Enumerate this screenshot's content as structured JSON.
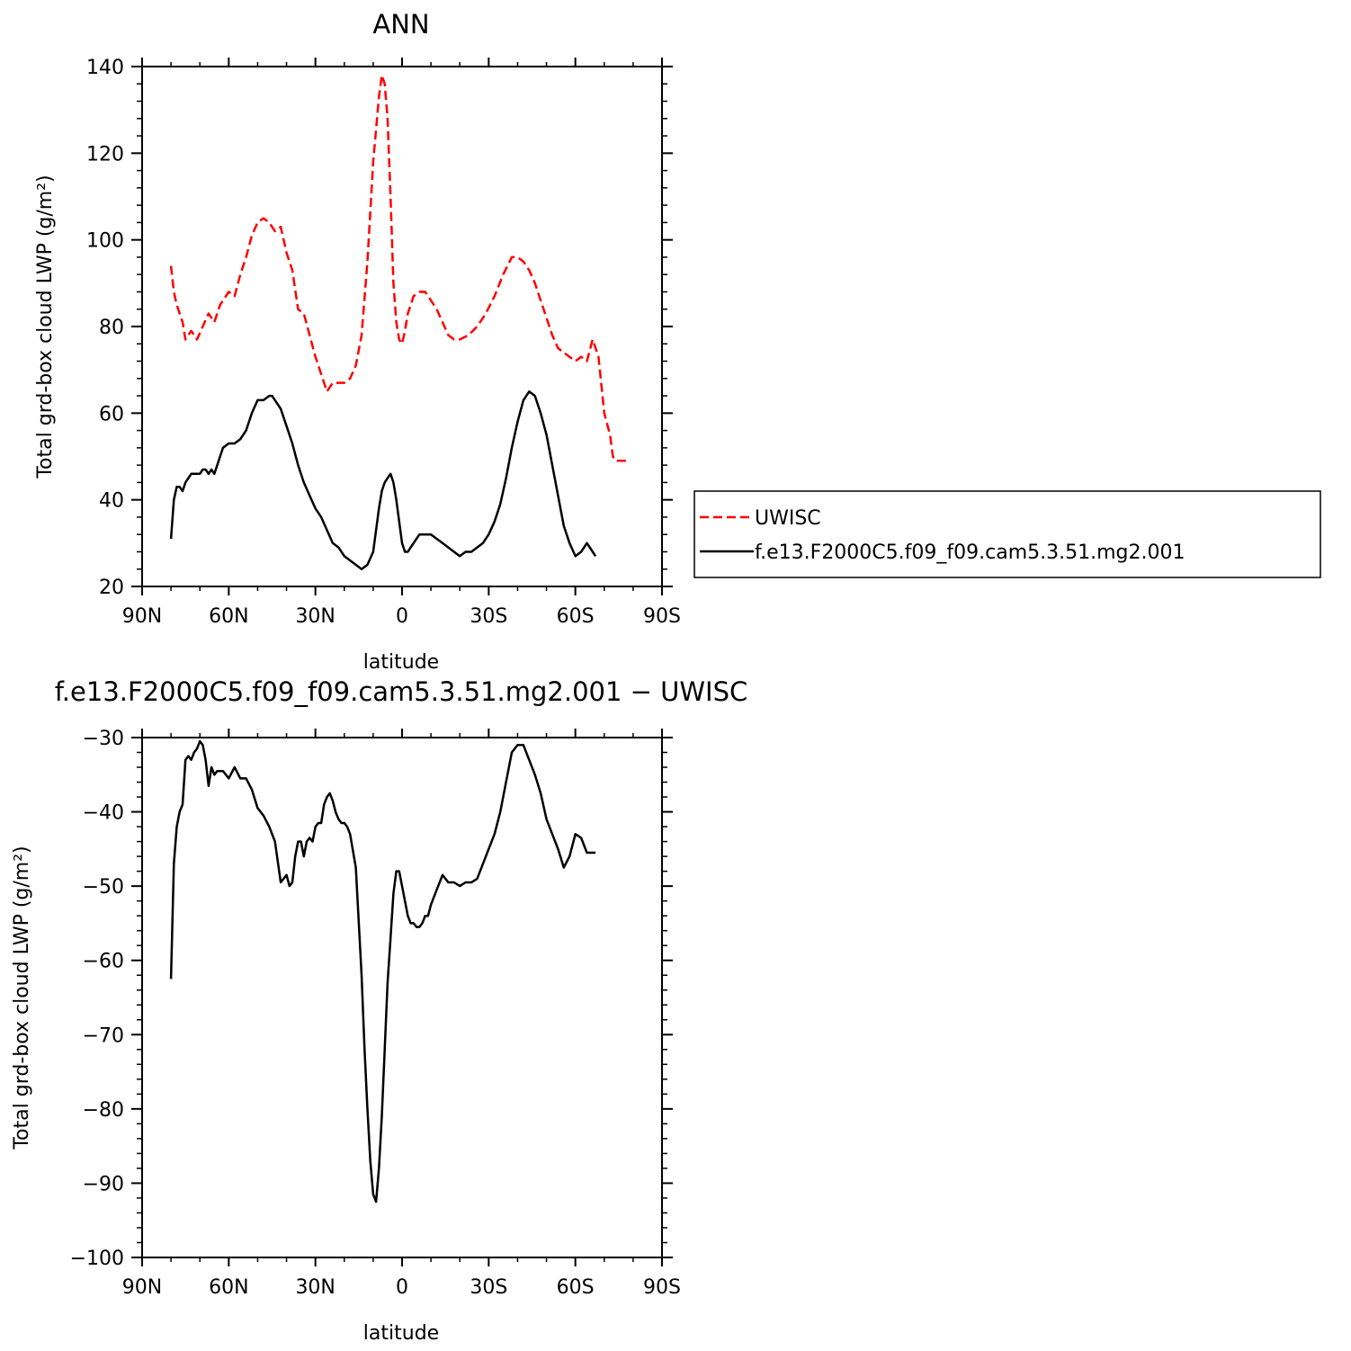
{
  "chart_data": [
    {
      "type": "line",
      "title": "ANN",
      "xlabel": "latitude",
      "ylabel": "Total grd-box cloud LWP (g/m²)",
      "xlim": [
        -90,
        90
      ],
      "ylim": [
        20,
        140
      ],
      "x_tick_values": [
        -90,
        -60,
        -30,
        0,
        30,
        60,
        90
      ],
      "x_tick_labels": [
        "90N",
        "60N",
        "30N",
        "0",
        "30S",
        "60S",
        "90S"
      ],
      "y_tick_values": [
        20,
        40,
        60,
        80,
        100,
        120,
        140
      ],
      "y_tick_labels": [
        "20",
        "40",
        "60",
        "80",
        "100",
        "120",
        "140"
      ],
      "legend_position": "right",
      "series": [
        {
          "name": "UWISC",
          "color": "#ff0000",
          "style": "dashed",
          "x": [
            -80,
            -79,
            -78,
            -76,
            -75,
            -73,
            -71,
            -69,
            -67,
            -65,
            -63,
            -60,
            -58,
            -56,
            -54,
            -52,
            -50,
            -48,
            -46,
            -44,
            -42,
            -40,
            -38,
            -36,
            -34,
            -32,
            -30,
            -28,
            -26,
            -24,
            -22,
            -20,
            -18,
            -16,
            -14,
            -12,
            -10,
            -8,
            -7,
            -6,
            -5,
            -4,
            -3,
            -2,
            -1,
            0,
            1,
            2,
            4,
            6,
            8,
            10,
            12,
            14,
            16,
            18,
            20,
            23,
            26,
            29,
            32,
            35,
            38,
            40,
            42,
            44,
            46,
            48,
            50,
            52,
            54,
            56,
            58,
            60,
            62,
            64,
            66,
            68,
            70,
            72,
            73,
            74,
            76,
            78
          ],
          "y": [
            94,
            88,
            85,
            81,
            77,
            79,
            77,
            80,
            83,
            81,
            85,
            88,
            87,
            92,
            96,
            101,
            104,
            105,
            104,
            102,
            103,
            97,
            93,
            84,
            83,
            78,
            73,
            69,
            65,
            67,
            67,
            67,
            68,
            71,
            78,
            95,
            118,
            133,
            138,
            136,
            128,
            110,
            90,
            81,
            77,
            76,
            79,
            83,
            87,
            88,
            88,
            86,
            84,
            81,
            78,
            77,
            77,
            78,
            80,
            83,
            87,
            92,
            96,
            96,
            95,
            93,
            90,
            86,
            82,
            78,
            75,
            74,
            73,
            72,
            73,
            72,
            77,
            73,
            60,
            55,
            50,
            49,
            49,
            49
          ]
        },
        {
          "name": "f.e13.F2000C5.f09_f09.cam5.3.51.mg2.001",
          "color": "#000000",
          "style": "solid",
          "x": [
            -80,
            -79,
            -78,
            -77,
            -76,
            -75,
            -74,
            -73,
            -72,
            -71,
            -70,
            -69,
            -68,
            -67,
            -66,
            -65,
            -64,
            -62,
            -60,
            -58,
            -56,
            -54,
            -52,
            -50,
            -48,
            -46,
            -45,
            -44,
            -42,
            -40,
            -38,
            -36,
            -34,
            -32,
            -30,
            -28,
            -26,
            -24,
            -22,
            -20,
            -18,
            -16,
            -14,
            -12,
            -10,
            -9,
            -8,
            -7,
            -6,
            -5,
            -4,
            -3,
            -2,
            -1,
            0,
            1,
            2,
            3,
            4,
            6,
            8,
            10,
            12,
            14,
            16,
            18,
            20,
            22,
            24,
            26,
            28,
            30,
            32,
            34,
            36,
            38,
            40,
            42,
            44,
            46,
            48,
            50,
            52,
            54,
            56,
            58,
            60,
            62,
            64,
            66,
            67
          ],
          "y": [
            31,
            40,
            43,
            43,
            42,
            44,
            45,
            46,
            46,
            46,
            46,
            47,
            47,
            46,
            47,
            46,
            48,
            52,
            53,
            53,
            54,
            56,
            60,
            63,
            63,
            64,
            64,
            63,
            61,
            57,
            53,
            48,
            44,
            41,
            38,
            36,
            33,
            30,
            29,
            27,
            26,
            25,
            24,
            25,
            28,
            33,
            38,
            42,
            44,
            45,
            46,
            44,
            40,
            35,
            30,
            28,
            28,
            29,
            30,
            32,
            32,
            32,
            31,
            30,
            29,
            28,
            27,
            28,
            28,
            29,
            30,
            32,
            35,
            39,
            45,
            52,
            58,
            63,
            65,
            64,
            60,
            55,
            48,
            41,
            34,
            30,
            27,
            28,
            30,
            28,
            27
          ]
        }
      ]
    },
    {
      "type": "line",
      "title": "f.e13.F2000C5.f09_f09.cam5.3.51.mg2.001  −  UWISC",
      "xlabel": "latitude",
      "ylabel": "Total grd-box cloud LWP (g/m²)",
      "xlim": [
        -90,
        90
      ],
      "ylim": [
        -100,
        -30
      ],
      "x_tick_values": [
        -90,
        -60,
        -30,
        0,
        30,
        60,
        90
      ],
      "x_tick_labels": [
        "90N",
        "60N",
        "30N",
        "0",
        "30S",
        "60S",
        "90S"
      ],
      "y_tick_values": [
        -100,
        -90,
        -80,
        -70,
        -60,
        -50,
        -40,
        -30
      ],
      "y_tick_labels": [
        "−100",
        "−90",
        "−80",
        "−70",
        "−60",
        "−50",
        "−40",
        "−30"
      ],
      "series": [
        {
          "name": "",
          "color": "#000000",
          "style": "solid",
          "x": [
            -80,
            -79,
            -78,
            -77,
            -76,
            -75,
            -74,
            -73,
            -72,
            -71,
            -70,
            -69,
            -68,
            -67,
            -66,
            -65,
            -64,
            -62,
            -60,
            -58,
            -56,
            -54,
            -52,
            -50,
            -48,
            -46,
            -44,
            -42,
            -40,
            -39,
            -38,
            -37,
            -36,
            -35,
            -34,
            -33,
            -32,
            -31,
            -30,
            -29,
            -28,
            -27,
            -26,
            -25,
            -24,
            -23,
            -22,
            -21,
            -20,
            -19,
            -18,
            -16,
            -14,
            -13,
            -12,
            -11,
            -10,
            -9,
            -8,
            -7,
            -6,
            -5,
            -4,
            -3,
            -2,
            -1,
            0,
            1,
            2,
            3,
            4,
            5,
            6,
            7,
            8,
            9,
            10,
            12,
            14,
            16,
            18,
            20,
            22,
            24,
            26,
            28,
            30,
            32,
            34,
            36,
            38,
            40,
            42,
            44,
            46,
            48,
            50,
            52,
            54,
            56,
            58,
            60,
            62,
            64,
            66,
            67
          ],
          "y": [
            -62.5,
            -47,
            -42,
            -40,
            -39,
            -33,
            -32.5,
            -33,
            -32,
            -31.5,
            -30.5,
            -31,
            -33,
            -36.5,
            -34,
            -35,
            -34.5,
            -34.5,
            -35.5,
            -34,
            -35.5,
            -35.5,
            -37,
            -39.5,
            -40.5,
            -42,
            -44,
            -49.5,
            -48.5,
            -50,
            -49.5,
            -46,
            -44,
            -44,
            -46,
            -44,
            -43.5,
            -44,
            -42,
            -41.5,
            -41.5,
            -39,
            -38,
            -37.5,
            -38.5,
            -40,
            -41,
            -41.5,
            -41.5,
            -42,
            -43,
            -47.5,
            -62,
            -72,
            -80,
            -87,
            -91.5,
            -92.5,
            -88,
            -81,
            -72,
            -63,
            -57,
            -51,
            -48,
            -48,
            -50,
            -52,
            -54,
            -55,
            -55,
            -55.5,
            -55.5,
            -55,
            -54,
            -54,
            -52.5,
            -50.5,
            -48.5,
            -49.5,
            -49.5,
            -50,
            -49.5,
            -49.5,
            -49,
            -47,
            -45,
            -43,
            -40,
            -36,
            -32,
            -31,
            -31,
            -33,
            -35,
            -37.5,
            -41,
            -43,
            -45,
            -47.5,
            -46,
            -43,
            -43.5,
            -45.5,
            -45.5,
            -45.5
          ]
        }
      ]
    }
  ]
}
